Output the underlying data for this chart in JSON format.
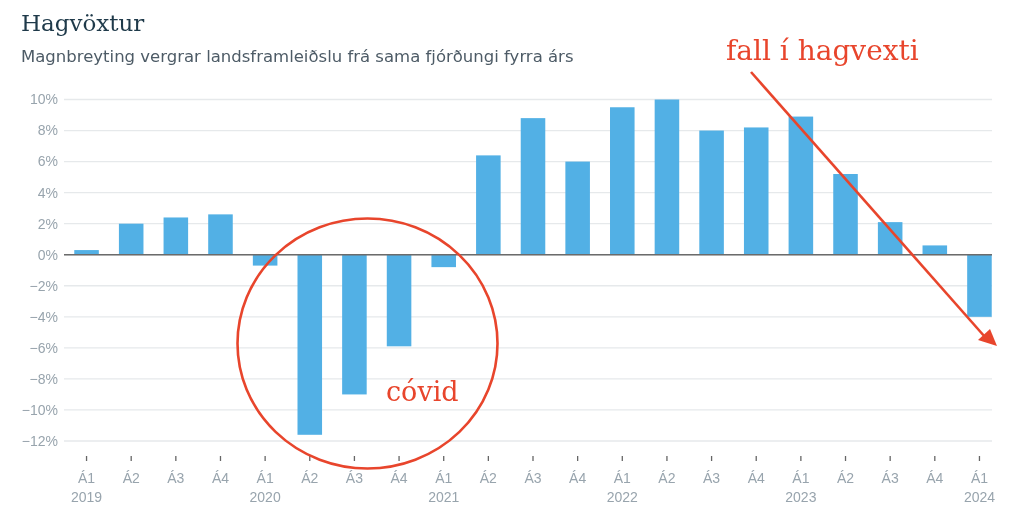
{
  "chart_data": {
    "type": "bar",
    "title": "Hagvöxtur",
    "subtitle": "Magnbreyting vergrar landsframleiðslu frá sama fjórðungi fyrra árs",
    "categories": [
      "Á1\n2019",
      "Á2",
      "Á3",
      "Á4",
      "Á1\n2020",
      "Á2",
      "Á3",
      "Á4",
      "Á1\n2021",
      "Á2",
      "Á3",
      "Á4",
      "Á1\n2022",
      "Á2",
      "Á3",
      "Á4",
      "Á1\n2023",
      "Á2",
      "Á3",
      "Á4",
      "Á1\n2024"
    ],
    "values": [
      0.3,
      2.0,
      2.4,
      2.6,
      -0.7,
      -11.6,
      -9.0,
      -5.9,
      -0.8,
      6.4,
      8.8,
      6.0,
      9.5,
      10.0,
      8.0,
      8.2,
      8.9,
      5.2,
      2.1,
      0.6,
      -4.0
    ],
    "color": "#52b0e5",
    "ylim": [
      -12,
      10
    ],
    "yticks": [
      {
        "value": -12,
        "label": "−12%"
      },
      {
        "value": -10,
        "label": "−10%"
      },
      {
        "value": -8,
        "label": "−8%"
      },
      {
        "value": -6,
        "label": "−6%"
      },
      {
        "value": -4,
        "label": "−4%"
      },
      {
        "value": -2,
        "label": "−2%"
      },
      {
        "value": 0,
        "label": "0%"
      },
      {
        "value": 2,
        "label": "2%"
      },
      {
        "value": 4,
        "label": "4%"
      },
      {
        "value": 6,
        "label": "6%"
      },
      {
        "value": 8,
        "label": "8%"
      },
      {
        "value": 10,
        "label": "10%"
      }
    ],
    "grid": "y",
    "ref_lines": [
      {
        "axis": "y",
        "value": 0,
        "color": "#6b6b6b"
      }
    ],
    "annotations": [
      "fall í hagvexti",
      "cóvid"
    ]
  }
}
